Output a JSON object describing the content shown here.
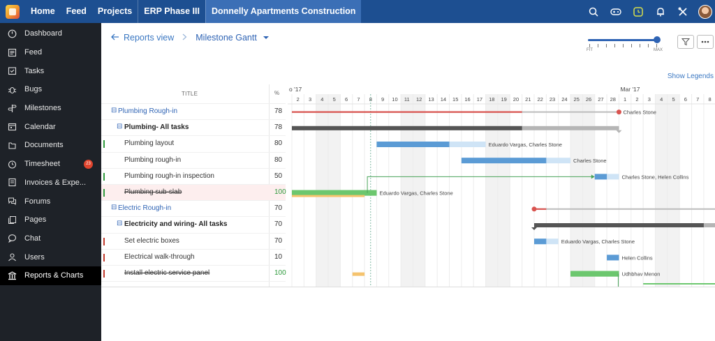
{
  "topnav": {
    "items": [
      "Home",
      "Feed",
      "Projects",
      "ERP Phase III",
      "Donnelly Apartments Construction"
    ]
  },
  "topbar_icons": [
    "search-icon",
    "gamepad-icon",
    "clock-icon",
    "bell-icon",
    "tools-icon",
    "avatar"
  ],
  "sidebar": {
    "items": [
      {
        "label": "Dashboard",
        "icon": "dashboard-icon"
      },
      {
        "label": "Feed",
        "icon": "feed-icon"
      },
      {
        "label": "Tasks",
        "icon": "tasks-icon"
      },
      {
        "label": "Bugs",
        "icon": "bug-icon"
      },
      {
        "label": "Milestones",
        "icon": "milestone-icon"
      },
      {
        "label": "Calendar",
        "icon": "calendar-icon"
      },
      {
        "label": "Documents",
        "icon": "documents-icon"
      },
      {
        "label": "Timesheet",
        "icon": "timesheet-icon",
        "badge": "23"
      },
      {
        "label": "Invoices & Expe...",
        "icon": "invoice-icon"
      },
      {
        "label": "Forums",
        "icon": "forums-icon"
      },
      {
        "label": "Pages",
        "icon": "pages-icon"
      },
      {
        "label": "Chat",
        "icon": "chat-icon"
      },
      {
        "label": "Users",
        "icon": "users-icon"
      },
      {
        "label": "Reports & Charts",
        "icon": "reports-icon",
        "active": true
      }
    ]
  },
  "breadcrumb": {
    "back_label": "Reports view",
    "view_label": "Milestone Gantt"
  },
  "zoom": {
    "min_label": "FIT",
    "max_label": "MAX",
    "level": 1.0
  },
  "legend_link": "Show Legends",
  "table": {
    "title_header": "TITLE",
    "pct_header": "%",
    "rows": [
      {
        "title": "Plumbing Rough-in",
        "pct": "78",
        "kind": "group"
      },
      {
        "title": "Plumbing- All tasks",
        "pct": "78",
        "kind": "tasklist"
      },
      {
        "title": "Plumbing layout",
        "pct": "80",
        "kind": "task",
        "mark": "#2e9a3c"
      },
      {
        "title": "Plumbing rough-in",
        "pct": "80",
        "kind": "task"
      },
      {
        "title": "Plumbing rough-in inspection",
        "pct": "50",
        "kind": "task",
        "mark": "#2e9a3c"
      },
      {
        "title": "Plumbing sub-slab",
        "pct": "100",
        "kind": "task",
        "mark": "#2e9a3c",
        "done": true,
        "highlight": true
      },
      {
        "title": "Electric Rough-in",
        "pct": "70",
        "kind": "group"
      },
      {
        "title": "Electricity and wiring- All tasks",
        "pct": "70",
        "kind": "tasklist"
      },
      {
        "title": "Set electric boxes",
        "pct": "70",
        "kind": "task",
        "mark": "#c0392b"
      },
      {
        "title": "Electrical walk-through",
        "pct": "10",
        "kind": "task",
        "mark": "#c0392b"
      },
      {
        "title": "Install electric service panel",
        "pct": "100",
        "kind": "task",
        "mark": "#c0392b",
        "done": true
      }
    ]
  },
  "timeline": {
    "feb_label": "o '17",
    "mar_label": "Mar '17",
    "feb_days": [
      "2",
      "3",
      "4",
      "5",
      "6",
      "7",
      "8",
      "9",
      "10",
      "11",
      "12",
      "13",
      "14",
      "15",
      "16",
      "17",
      "18",
      "19",
      "20",
      "21",
      "22",
      "23",
      "24",
      "25",
      "26",
      "27",
      "28"
    ],
    "mar_days": [
      "1",
      "2",
      "3",
      "4",
      "5",
      "6",
      "7",
      "8"
    ],
    "weekend_days": [
      "4",
      "5",
      "11",
      "12",
      "18",
      "19",
      "25",
      "26",
      "M4",
      "M5"
    ],
    "today": "8"
  },
  "bars": [
    {
      "row": 0,
      "type": "milestone",
      "start": "2",
      "end": "28",
      "done_until": "20",
      "color": "#d9534f",
      "label": "Charles Stone"
    },
    {
      "row": 1,
      "type": "tasklist",
      "start": "2",
      "end": "28",
      "done_until": "20",
      "color": "#555555",
      "label": ""
    },
    {
      "row": 2,
      "type": "task",
      "start": "9",
      "end": "17",
      "done_until": "14",
      "color": "#5b9bd5",
      "label": "Eduardo Vargas, Charles Stone"
    },
    {
      "row": 3,
      "type": "task",
      "start": "16",
      "end": "24",
      "done_until": "22",
      "color": "#5b9bd5",
      "label": "Charles Stone"
    },
    {
      "row": 4,
      "type": "task",
      "start": "27",
      "end": "28",
      "done_until": "27",
      "color": "#5b9bd5",
      "label": "Charles Stone, Helen Collins"
    },
    {
      "row": 5,
      "type": "task",
      "start": "2",
      "end": "8",
      "done_until": "8",
      "color": "#6cc76e",
      "label": "Eduardo Vargas, Charles Stone"
    },
    {
      "row": 6,
      "type": "milestone",
      "start": "22",
      "end": "M8",
      "done_until": "22",
      "color": "#d9534f",
      "label": ""
    },
    {
      "row": 7,
      "type": "tasklist",
      "start": "22",
      "end": "M8",
      "done_until": "M7",
      "color": "#555555",
      "label": ""
    },
    {
      "row": 8,
      "type": "task",
      "start": "22",
      "end": "23",
      "done_until": "22",
      "color": "#5b9bd5",
      "label": "Eduardo Vargas, Charles Stone"
    },
    {
      "row": 9,
      "type": "task",
      "start": "28",
      "end": "28",
      "done_until": "28",
      "color": "#5b9bd5",
      "label": "Helen Collins"
    },
    {
      "row": 10,
      "type": "task",
      "start": "25",
      "end": "28",
      "done_until": "28",
      "color": "#6cc76e",
      "label": "Udhbhav Menon"
    }
  ],
  "colors": {
    "topbar": "#1d4f91",
    "topbar_active": "#3b6fb6",
    "sidebar": "#1e2228",
    "accent": "#2e63b4",
    "milestone": "#d9534f",
    "task": "#5b9bd5",
    "complete": "#6cc76e"
  }
}
